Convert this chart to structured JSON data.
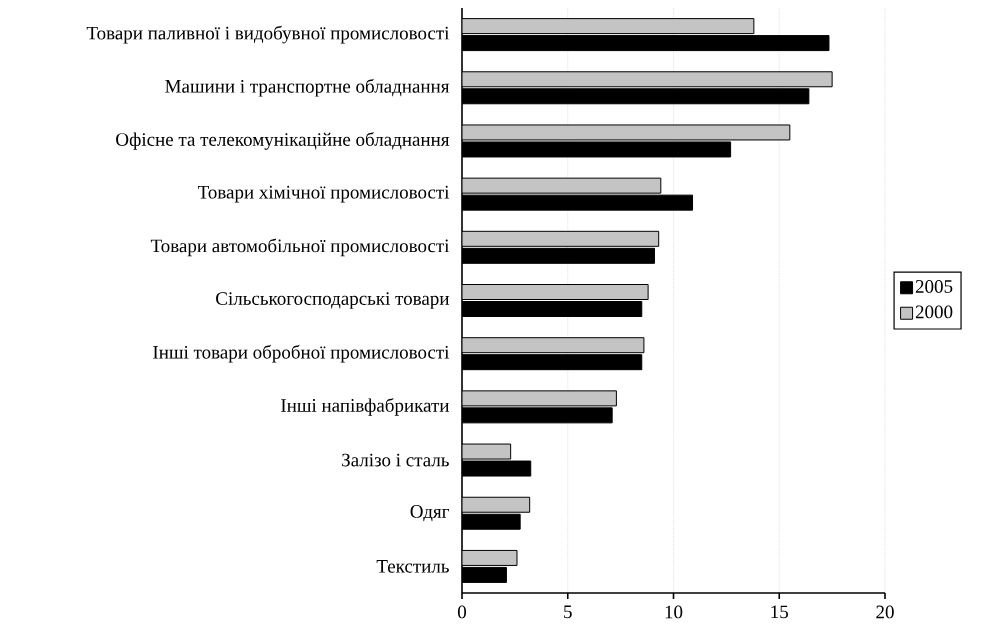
{
  "chart_data": {
    "type": "bar",
    "orientation": "horizontal",
    "categories": [
      "Товари паливної і видобувної промисловості",
      "Машини і транспортне обладнання",
      "Офісне та телекомунікаційне обладнання",
      "Товари хімічної промисловості",
      "Товари автомобільної промисловості",
      "Сільськогосподарські товари",
      "Інші товари обробної промисловості",
      "Інші напівфабрикати",
      "Залізо і сталь",
      "Одяг",
      "Текстиль"
    ],
    "series": [
      {
        "name": "2005",
        "color": "#000000",
        "values": [
          17.35,
          16.4,
          12.7,
          10.9,
          9.1,
          8.5,
          8.5,
          7.1,
          3.25,
          2.75,
          2.1
        ]
      },
      {
        "name": "2000",
        "color": "#c4c4c4",
        "values": [
          13.8,
          17.5,
          15.5,
          9.4,
          9.3,
          8.8,
          8.6,
          7.3,
          2.3,
          3.2,
          2.6
        ]
      }
    ],
    "xlim": [
      0,
      20
    ],
    "xticks": [
      0,
      5,
      10,
      15,
      20
    ],
    "grid": "x",
    "legend": "right"
  }
}
